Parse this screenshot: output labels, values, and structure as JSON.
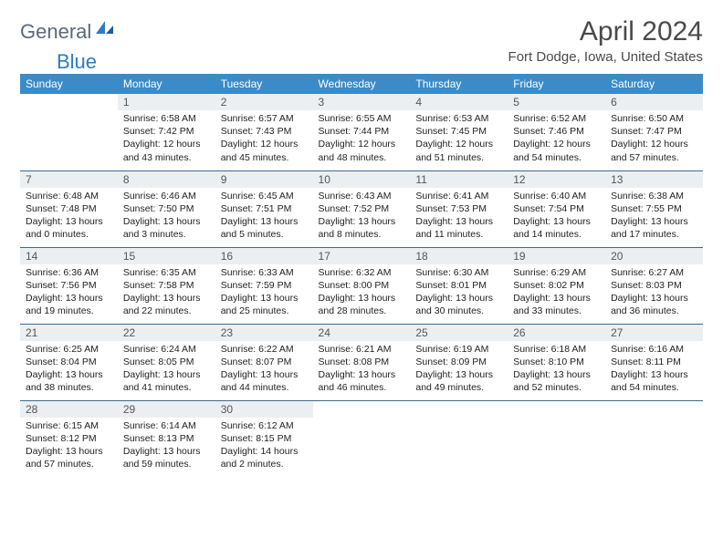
{
  "logo": {
    "text1": "General",
    "text2": "Blue"
  },
  "title": "April 2024",
  "location": "Fort Dodge, Iowa, United States",
  "colors": {
    "header_bg": "#3b8bc8",
    "header_text": "#ffffff",
    "daynum_bg": "#eceff1",
    "row_border": "#3b6a94",
    "logo_gray": "#5a6a78",
    "logo_blue": "#2d7cc0"
  },
  "weekdays": [
    "Sunday",
    "Monday",
    "Tuesday",
    "Wednesday",
    "Thursday",
    "Friday",
    "Saturday"
  ],
  "weeks": [
    [
      {
        "day": "",
        "sunrise": "",
        "sunset": "",
        "daylight": ""
      },
      {
        "day": "1",
        "sunrise": "Sunrise: 6:58 AM",
        "sunset": "Sunset: 7:42 PM",
        "daylight": "Daylight: 12 hours and 43 minutes."
      },
      {
        "day": "2",
        "sunrise": "Sunrise: 6:57 AM",
        "sunset": "Sunset: 7:43 PM",
        "daylight": "Daylight: 12 hours and 45 minutes."
      },
      {
        "day": "3",
        "sunrise": "Sunrise: 6:55 AM",
        "sunset": "Sunset: 7:44 PM",
        "daylight": "Daylight: 12 hours and 48 minutes."
      },
      {
        "day": "4",
        "sunrise": "Sunrise: 6:53 AM",
        "sunset": "Sunset: 7:45 PM",
        "daylight": "Daylight: 12 hours and 51 minutes."
      },
      {
        "day": "5",
        "sunrise": "Sunrise: 6:52 AM",
        "sunset": "Sunset: 7:46 PM",
        "daylight": "Daylight: 12 hours and 54 minutes."
      },
      {
        "day": "6",
        "sunrise": "Sunrise: 6:50 AM",
        "sunset": "Sunset: 7:47 PM",
        "daylight": "Daylight: 12 hours and 57 minutes."
      }
    ],
    [
      {
        "day": "7",
        "sunrise": "Sunrise: 6:48 AM",
        "sunset": "Sunset: 7:48 PM",
        "daylight": "Daylight: 13 hours and 0 minutes."
      },
      {
        "day": "8",
        "sunrise": "Sunrise: 6:46 AM",
        "sunset": "Sunset: 7:50 PM",
        "daylight": "Daylight: 13 hours and 3 minutes."
      },
      {
        "day": "9",
        "sunrise": "Sunrise: 6:45 AM",
        "sunset": "Sunset: 7:51 PM",
        "daylight": "Daylight: 13 hours and 5 minutes."
      },
      {
        "day": "10",
        "sunrise": "Sunrise: 6:43 AM",
        "sunset": "Sunset: 7:52 PM",
        "daylight": "Daylight: 13 hours and 8 minutes."
      },
      {
        "day": "11",
        "sunrise": "Sunrise: 6:41 AM",
        "sunset": "Sunset: 7:53 PM",
        "daylight": "Daylight: 13 hours and 11 minutes."
      },
      {
        "day": "12",
        "sunrise": "Sunrise: 6:40 AM",
        "sunset": "Sunset: 7:54 PM",
        "daylight": "Daylight: 13 hours and 14 minutes."
      },
      {
        "day": "13",
        "sunrise": "Sunrise: 6:38 AM",
        "sunset": "Sunset: 7:55 PM",
        "daylight": "Daylight: 13 hours and 17 minutes."
      }
    ],
    [
      {
        "day": "14",
        "sunrise": "Sunrise: 6:36 AM",
        "sunset": "Sunset: 7:56 PM",
        "daylight": "Daylight: 13 hours and 19 minutes."
      },
      {
        "day": "15",
        "sunrise": "Sunrise: 6:35 AM",
        "sunset": "Sunset: 7:58 PM",
        "daylight": "Daylight: 13 hours and 22 minutes."
      },
      {
        "day": "16",
        "sunrise": "Sunrise: 6:33 AM",
        "sunset": "Sunset: 7:59 PM",
        "daylight": "Daylight: 13 hours and 25 minutes."
      },
      {
        "day": "17",
        "sunrise": "Sunrise: 6:32 AM",
        "sunset": "Sunset: 8:00 PM",
        "daylight": "Daylight: 13 hours and 28 minutes."
      },
      {
        "day": "18",
        "sunrise": "Sunrise: 6:30 AM",
        "sunset": "Sunset: 8:01 PM",
        "daylight": "Daylight: 13 hours and 30 minutes."
      },
      {
        "day": "19",
        "sunrise": "Sunrise: 6:29 AM",
        "sunset": "Sunset: 8:02 PM",
        "daylight": "Daylight: 13 hours and 33 minutes."
      },
      {
        "day": "20",
        "sunrise": "Sunrise: 6:27 AM",
        "sunset": "Sunset: 8:03 PM",
        "daylight": "Daylight: 13 hours and 36 minutes."
      }
    ],
    [
      {
        "day": "21",
        "sunrise": "Sunrise: 6:25 AM",
        "sunset": "Sunset: 8:04 PM",
        "daylight": "Daylight: 13 hours and 38 minutes."
      },
      {
        "day": "22",
        "sunrise": "Sunrise: 6:24 AM",
        "sunset": "Sunset: 8:05 PM",
        "daylight": "Daylight: 13 hours and 41 minutes."
      },
      {
        "day": "23",
        "sunrise": "Sunrise: 6:22 AM",
        "sunset": "Sunset: 8:07 PM",
        "daylight": "Daylight: 13 hours and 44 minutes."
      },
      {
        "day": "24",
        "sunrise": "Sunrise: 6:21 AM",
        "sunset": "Sunset: 8:08 PM",
        "daylight": "Daylight: 13 hours and 46 minutes."
      },
      {
        "day": "25",
        "sunrise": "Sunrise: 6:19 AM",
        "sunset": "Sunset: 8:09 PM",
        "daylight": "Daylight: 13 hours and 49 minutes."
      },
      {
        "day": "26",
        "sunrise": "Sunrise: 6:18 AM",
        "sunset": "Sunset: 8:10 PM",
        "daylight": "Daylight: 13 hours and 52 minutes."
      },
      {
        "day": "27",
        "sunrise": "Sunrise: 6:16 AM",
        "sunset": "Sunset: 8:11 PM",
        "daylight": "Daylight: 13 hours and 54 minutes."
      }
    ],
    [
      {
        "day": "28",
        "sunrise": "Sunrise: 6:15 AM",
        "sunset": "Sunset: 8:12 PM",
        "daylight": "Daylight: 13 hours and 57 minutes."
      },
      {
        "day": "29",
        "sunrise": "Sunrise: 6:14 AM",
        "sunset": "Sunset: 8:13 PM",
        "daylight": "Daylight: 13 hours and 59 minutes."
      },
      {
        "day": "30",
        "sunrise": "Sunrise: 6:12 AM",
        "sunset": "Sunset: 8:15 PM",
        "daylight": "Daylight: 14 hours and 2 minutes."
      },
      {
        "day": "",
        "sunrise": "",
        "sunset": "",
        "daylight": ""
      },
      {
        "day": "",
        "sunrise": "",
        "sunset": "",
        "daylight": ""
      },
      {
        "day": "",
        "sunrise": "",
        "sunset": "",
        "daylight": ""
      },
      {
        "day": "",
        "sunrise": "",
        "sunset": "",
        "daylight": ""
      }
    ]
  ]
}
